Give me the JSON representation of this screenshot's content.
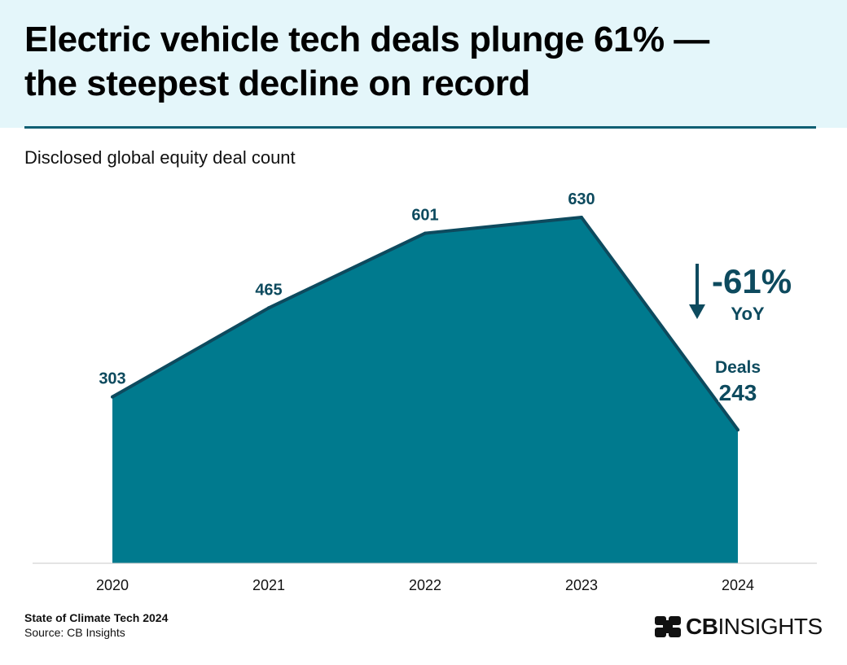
{
  "header": {
    "title_line1": "Electric vehicle tech deals plunge 61% —",
    "title_line2": "the steepest decline on record"
  },
  "subtitle": "Disclosed global equity deal count",
  "chart_data": {
    "type": "area",
    "title": "Electric vehicle tech deals plunge 61% — the steepest decline on record",
    "ylabel": "Disclosed global equity deal count",
    "categories": [
      "2020",
      "2021",
      "2022",
      "2023",
      "2024"
    ],
    "values": [
      303,
      465,
      601,
      630,
      243
    ],
    "value_labels": [
      "303",
      "465",
      "601",
      "630",
      "243"
    ],
    "ylim": [
      0,
      630
    ],
    "grid": false,
    "legend": "none",
    "annotation": {
      "change": "-61%",
      "period": "YoY",
      "last_label": "Deals"
    }
  },
  "footer": {
    "report": "State of Climate Tech 2024",
    "source": "Source: CB Insights"
  },
  "logo": {
    "bold": "CB",
    "rest": "INSIGHTS"
  },
  "colors": {
    "area_fill": "#007a8e",
    "area_stroke": "#0d4a5e",
    "label": "#0d4a5e",
    "header_bg": "#e4f6fa",
    "header_rule": "#0e5f73"
  }
}
